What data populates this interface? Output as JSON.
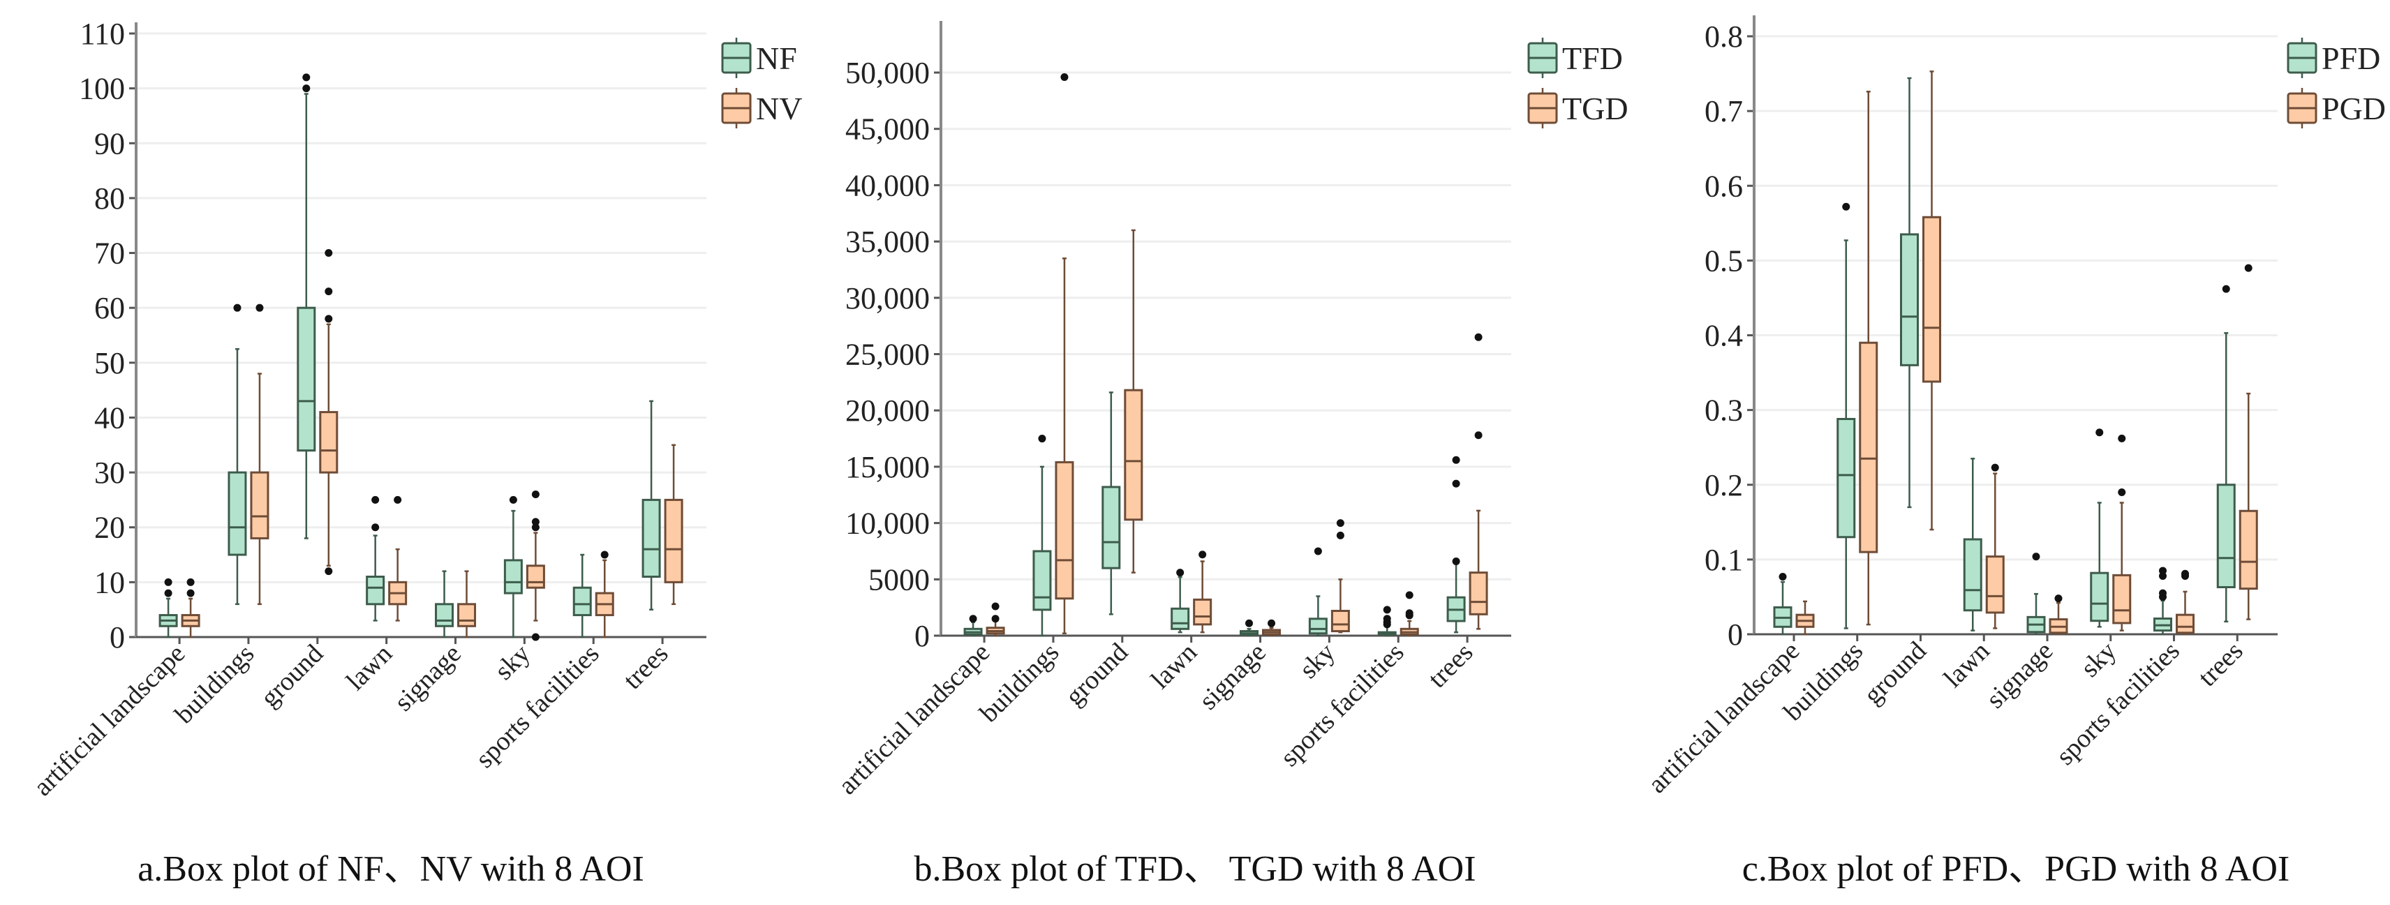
{
  "colors": {
    "series1_fill": "#b3e3cc",
    "series1_stroke": "#3d5c4c",
    "series2_fill": "#fdcba6",
    "series2_stroke": "#6e4c36",
    "grid": "#eeeeee",
    "axis": "#555555"
  },
  "chart_data": [
    {
      "type": "box",
      "caption": "a.Box plot of NF、NV with 8 AOI",
      "categories": [
        "artificial landscape",
        "buildings",
        "ground",
        "lawn",
        "signage",
        "sky",
        "sports facilities",
        "trees"
      ],
      "ylim": [
        0,
        110
      ],
      "yticks": [
        0,
        10,
        20,
        30,
        40,
        50,
        60,
        70,
        80,
        90,
        100,
        110
      ],
      "ytick_labels": [
        "0",
        "10",
        "20",
        "30",
        "40",
        "50",
        "60",
        "70",
        "80",
        "90",
        "100",
        "110"
      ],
      "grid": true,
      "legend": "top-right",
      "series": [
        {
          "name": "NF",
          "boxes": [
            {
              "min": 0,
              "q1": 2,
              "median": 3,
              "q3": 4,
              "max": 7,
              "outliers": [
                8,
                10
              ]
            },
            {
              "min": 6,
              "q1": 15,
              "median": 20,
              "q3": 30,
              "max": 52.5,
              "outliers": [
                60
              ]
            },
            {
              "min": 18,
              "q1": 34,
              "median": 43,
              "q3": 60,
              "max": 99,
              "outliers": [
                100,
                102
              ]
            },
            {
              "min": 3,
              "q1": 6,
              "median": 9,
              "q3": 11,
              "max": 18.5,
              "outliers": [
                20,
                25
              ]
            },
            {
              "min": 0,
              "q1": 2,
              "median": 3,
              "q3": 6,
              "max": 12,
              "outliers": []
            },
            {
              "min": 0,
              "q1": 8,
              "median": 10,
              "q3": 14,
              "max": 23,
              "outliers": [
                25
              ]
            },
            {
              "min": 0,
              "q1": 4,
              "median": 6,
              "q3": 9,
              "max": 15,
              "outliers": []
            },
            {
              "min": 5,
              "q1": 11,
              "median": 16,
              "q3": 25,
              "max": 43,
              "outliers": []
            }
          ]
        },
        {
          "name": "NV",
          "boxes": [
            {
              "min": 0,
              "q1": 2,
              "median": 3,
              "q3": 4,
              "max": 7,
              "outliers": [
                8,
                10
              ]
            },
            {
              "min": 6,
              "q1": 18,
              "median": 22,
              "q3": 30,
              "max": 48,
              "outliers": [
                60
              ]
            },
            {
              "min": 13,
              "q1": 30,
              "median": 34,
              "q3": 41,
              "max": 57,
              "outliers": [
                12,
                58,
                63,
                70
              ]
            },
            {
              "min": 3,
              "q1": 6,
              "median": 8,
              "q3": 10,
              "max": 16,
              "outliers": [
                25
              ]
            },
            {
              "min": 0,
              "q1": 2,
              "median": 3,
              "q3": 6,
              "max": 12,
              "outliers": []
            },
            {
              "min": 3,
              "q1": 9,
              "median": 10,
              "q3": 13,
              "max": 19,
              "outliers": [
                0,
                20,
                21,
                26
              ]
            },
            {
              "min": 0,
              "q1": 4,
              "median": 6,
              "q3": 8,
              "max": 14,
              "outliers": [
                15
              ]
            },
            {
              "min": 6,
              "q1": 10,
              "median": 16,
              "q3": 25,
              "max": 35,
              "outliers": []
            }
          ]
        }
      ]
    },
    {
      "type": "box",
      "caption": "b.Box plot of TFD、 TGD with 8 AOI",
      "categories": [
        "artificial landscape",
        "buildings",
        "ground",
        "lawn",
        "signage",
        "sky",
        "sports facilities",
        "trees"
      ],
      "ylim": [
        0,
        54000
      ],
      "yticks": [
        0,
        5000,
        10000,
        15000,
        20000,
        25000,
        30000,
        35000,
        40000,
        45000,
        50000
      ],
      "ytick_labels": [
        "0",
        "5000",
        "10,000",
        "15,000",
        "20,000",
        "25,000",
        "30,000",
        "35,000",
        "40,000",
        "45,000",
        "50,000"
      ],
      "grid": true,
      "legend": "top-right",
      "series": [
        {
          "name": "TFD",
          "boxes": [
            {
              "min": 0,
              "q1": 100,
              "median": 300,
              "q3": 600,
              "max": 1200,
              "outliers": [
                1500
              ]
            },
            {
              "min": 0,
              "q1": 2300,
              "median": 3400,
              "q3": 7500,
              "max": 15000,
              "outliers": [
                17500
              ]
            },
            {
              "min": 1900,
              "q1": 6000,
              "median": 8300,
              "q3": 13200,
              "max": 21600,
              "outliers": []
            },
            {
              "min": 300,
              "q1": 600,
              "median": 1100,
              "q3": 2400,
              "max": 5200,
              "outliers": [
                5600
              ]
            },
            {
              "min": 0,
              "q1": 100,
              "median": 200,
              "q3": 400,
              "max": 600,
              "outliers": [
                1100
              ]
            },
            {
              "min": 0,
              "q1": 200,
              "median": 600,
              "q3": 1500,
              "max": 3500,
              "outliers": [
                7500
              ]
            },
            {
              "min": 0,
              "q1": 100,
              "median": 200,
              "q3": 300,
              "max": 900,
              "outliers": [
                1000,
                1200,
                1500,
                2300
              ]
            },
            {
              "min": 300,
              "q1": 1300,
              "median": 2300,
              "q3": 3400,
              "max": 6500,
              "outliers": [
                6600,
                13500,
                15600
              ]
            }
          ]
        },
        {
          "name": "TGD",
          "boxes": [
            {
              "min": 0,
              "q1": 200,
              "median": 400,
              "q3": 700,
              "max": 1300,
              "outliers": [
                1500,
                2600
              ]
            },
            {
              "min": 200,
              "q1": 3300,
              "median": 6700,
              "q3": 15400,
              "max": 33500,
              "outliers": [
                49600
              ]
            },
            {
              "min": 5600,
              "q1": 10300,
              "median": 15500,
              "q3": 21800,
              "max": 36000,
              "outliers": []
            },
            {
              "min": 300,
              "q1": 1000,
              "median": 1700,
              "q3": 3200,
              "max": 6600,
              "outliers": [
                7200
              ]
            },
            {
              "min": 0,
              "q1": 100,
              "median": 300,
              "q3": 500,
              "max": 700,
              "outliers": [
                1100
              ]
            },
            {
              "min": 300,
              "q1": 400,
              "median": 1000,
              "q3": 2200,
              "max": 5000,
              "outliers": [
                8900,
                10000
              ]
            },
            {
              "min": 0,
              "q1": 100,
              "median": 300,
              "q3": 600,
              "max": 1300,
              "outliers": [
                1800,
                2000,
                3600
              ]
            },
            {
              "min": 600,
              "q1": 1900,
              "median": 3000,
              "q3": 5600,
              "max": 11100,
              "outliers": [
                17800,
                26500
              ]
            }
          ]
        }
      ]
    },
    {
      "type": "box",
      "caption": "c.Box plot of PFD、PGD with 8 AOI",
      "categories": [
        "artificial landscape",
        "buildings",
        "ground",
        "lawn",
        "signage",
        "sky",
        "sports facilities",
        "trees"
      ],
      "ylim": [
        0,
        0.8
      ],
      "yticks": [
        0,
        0.1,
        0.2,
        0.3,
        0.4,
        0.5,
        0.6,
        0.7,
        0.8
      ],
      "ytick_labels": [
        "0",
        "0.1",
        "0.2",
        "0.3",
        "0.4",
        "0.5",
        "0.6",
        "0.7",
        "0.8"
      ],
      "grid": true,
      "legend": "top-right",
      "series": [
        {
          "name": "PFD",
          "boxes": [
            {
              "min": 0,
              "q1": 0.01,
              "median": 0.022,
              "q3": 0.036,
              "max": 0.07,
              "outliers": [
                0.077
              ]
            },
            {
              "min": 0.008,
              "q1": 0.13,
              "median": 0.213,
              "q3": 0.288,
              "max": 0.527,
              "outliers": [
                0.572
              ]
            },
            {
              "min": 0.17,
              "q1": 0.36,
              "median": 0.425,
              "q3": 0.535,
              "max": 0.744,
              "outliers": []
            },
            {
              "min": 0.005,
              "q1": 0.032,
              "median": 0.059,
              "q3": 0.127,
              "max": 0.235,
              "outliers": []
            },
            {
              "min": 0,
              "q1": 0.003,
              "median": 0.013,
              "q3": 0.023,
              "max": 0.054,
              "outliers": [
                0.104
              ]
            },
            {
              "min": 0.01,
              "q1": 0.018,
              "median": 0.041,
              "q3": 0.082,
              "max": 0.176,
              "outliers": [
                0.27
              ]
            },
            {
              "min": 0,
              "q1": 0.005,
              "median": 0.012,
              "q3": 0.021,
              "max": 0.045,
              "outliers": [
                0.05,
                0.055,
                0.078,
                0.085
              ]
            },
            {
              "min": 0.017,
              "q1": 0.063,
              "median": 0.102,
              "q3": 0.2,
              "max": 0.403,
              "outliers": [
                0.462
              ]
            }
          ]
        },
        {
          "name": "PGD",
          "boxes": [
            {
              "min": 0,
              "q1": 0.01,
              "median": 0.018,
              "q3": 0.026,
              "max": 0.044,
              "outliers": []
            },
            {
              "min": 0.013,
              "q1": 0.11,
              "median": 0.235,
              "q3": 0.39,
              "max": 0.726,
              "outliers": []
            },
            {
              "min": 0.14,
              "q1": 0.338,
              "median": 0.41,
              "q3": 0.558,
              "max": 0.753,
              "outliers": []
            },
            {
              "min": 0.008,
              "q1": 0.029,
              "median": 0.051,
              "q3": 0.104,
              "max": 0.215,
              "outliers": [
                0.223
              ]
            },
            {
              "min": 0,
              "q1": 0.002,
              "median": 0.01,
              "q3": 0.02,
              "max": 0.042,
              "outliers": [
                0.048
              ]
            },
            {
              "min": 0.005,
              "q1": 0.015,
              "median": 0.032,
              "q3": 0.079,
              "max": 0.176,
              "outliers": [
                0.19,
                0.262
              ]
            },
            {
              "min": 0,
              "q1": 0.002,
              "median": 0.01,
              "q3": 0.026,
              "max": 0.057,
              "outliers": [
                0.078,
                0.081
              ]
            },
            {
              "min": 0.02,
              "q1": 0.061,
              "median": 0.097,
              "q3": 0.165,
              "max": 0.322,
              "outliers": [
                0.49
              ]
            }
          ]
        }
      ]
    }
  ]
}
